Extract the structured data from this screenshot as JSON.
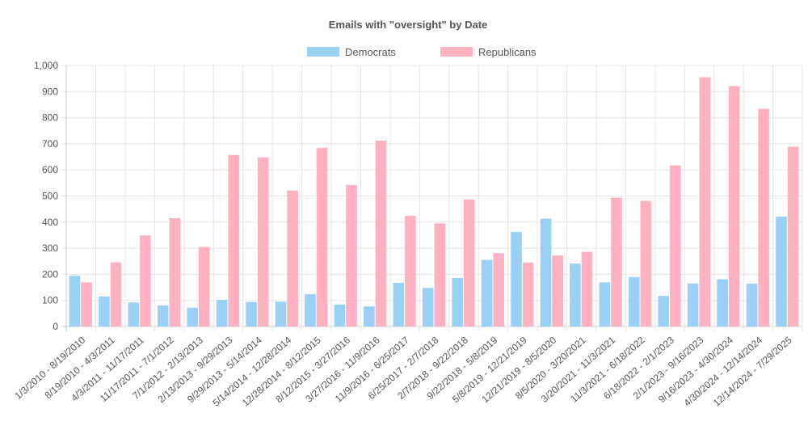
{
  "chart_data": {
    "type": "bar",
    "title": "Emails with \"oversight\" by Date",
    "xlabel": "",
    "ylabel": "",
    "ylim": [
      0,
      1000
    ],
    "yticks": [
      0,
      100,
      200,
      300,
      400,
      500,
      600,
      700,
      800,
      900,
      1000
    ],
    "ytick_labels": [
      "0",
      "100",
      "200",
      "300",
      "400",
      "500",
      "600",
      "700",
      "800",
      "900",
      "1,000"
    ],
    "grid": true,
    "legend_position": "top-center",
    "categories": [
      "1/3/2010 - 8/19/2010",
      "8/19/2010 - 4/3/2011",
      "4/3/2011 - 11/17/2011",
      "11/17/2011 - 7/1/2012",
      "7/1/2012 - 2/13/2013",
      "2/13/2013 - 9/29/2013",
      "9/29/2013 - 5/14/2014",
      "5/14/2014 - 12/28/2014",
      "12/28/2014 - 8/12/2015",
      "8/12/2015 - 3/27/2016",
      "3/27/2016 - 11/9/2016",
      "11/9/2016 - 6/25/2017",
      "6/25/2017 - 2/7/2018",
      "2/7/2018 - 9/22/2018",
      "9/22/2018 - 5/8/2019",
      "5/8/2019 - 12/21/2019",
      "12/21/2019 - 8/5/2020",
      "8/5/2020 - 3/20/2021",
      "3/20/2021 - 11/3/2021",
      "11/3/2021 - 6/18/2022",
      "6/18/2022 - 2/1/2023",
      "2/1/2023 - 9/16/2023",
      "9/16/2023 - 4/30/2024",
      "4/30/2024 - 12/14/2024",
      "12/14/2024 - 7/29/2025"
    ],
    "series": [
      {
        "name": "Democrats",
        "fill": "#9ad0f5",
        "stroke": "#36a2eb",
        "values": [
          194,
          115,
          92,
          81,
          72,
          102,
          94,
          95,
          124,
          84,
          77,
          167,
          148,
          186,
          255,
          362,
          413,
          241,
          169,
          189,
          117,
          165,
          181,
          164,
          421
        ]
      },
      {
        "name": "Republicans",
        "fill": "#ffb1c1",
        "stroke": "#ff6384",
        "values": [
          169,
          246,
          349,
          415,
          305,
          657,
          648,
          521,
          684,
          542,
          712,
          424,
          395,
          487,
          281,
          245,
          272,
          286,
          494,
          481,
          617,
          955,
          921,
          834,
          689
        ]
      }
    ]
  }
}
